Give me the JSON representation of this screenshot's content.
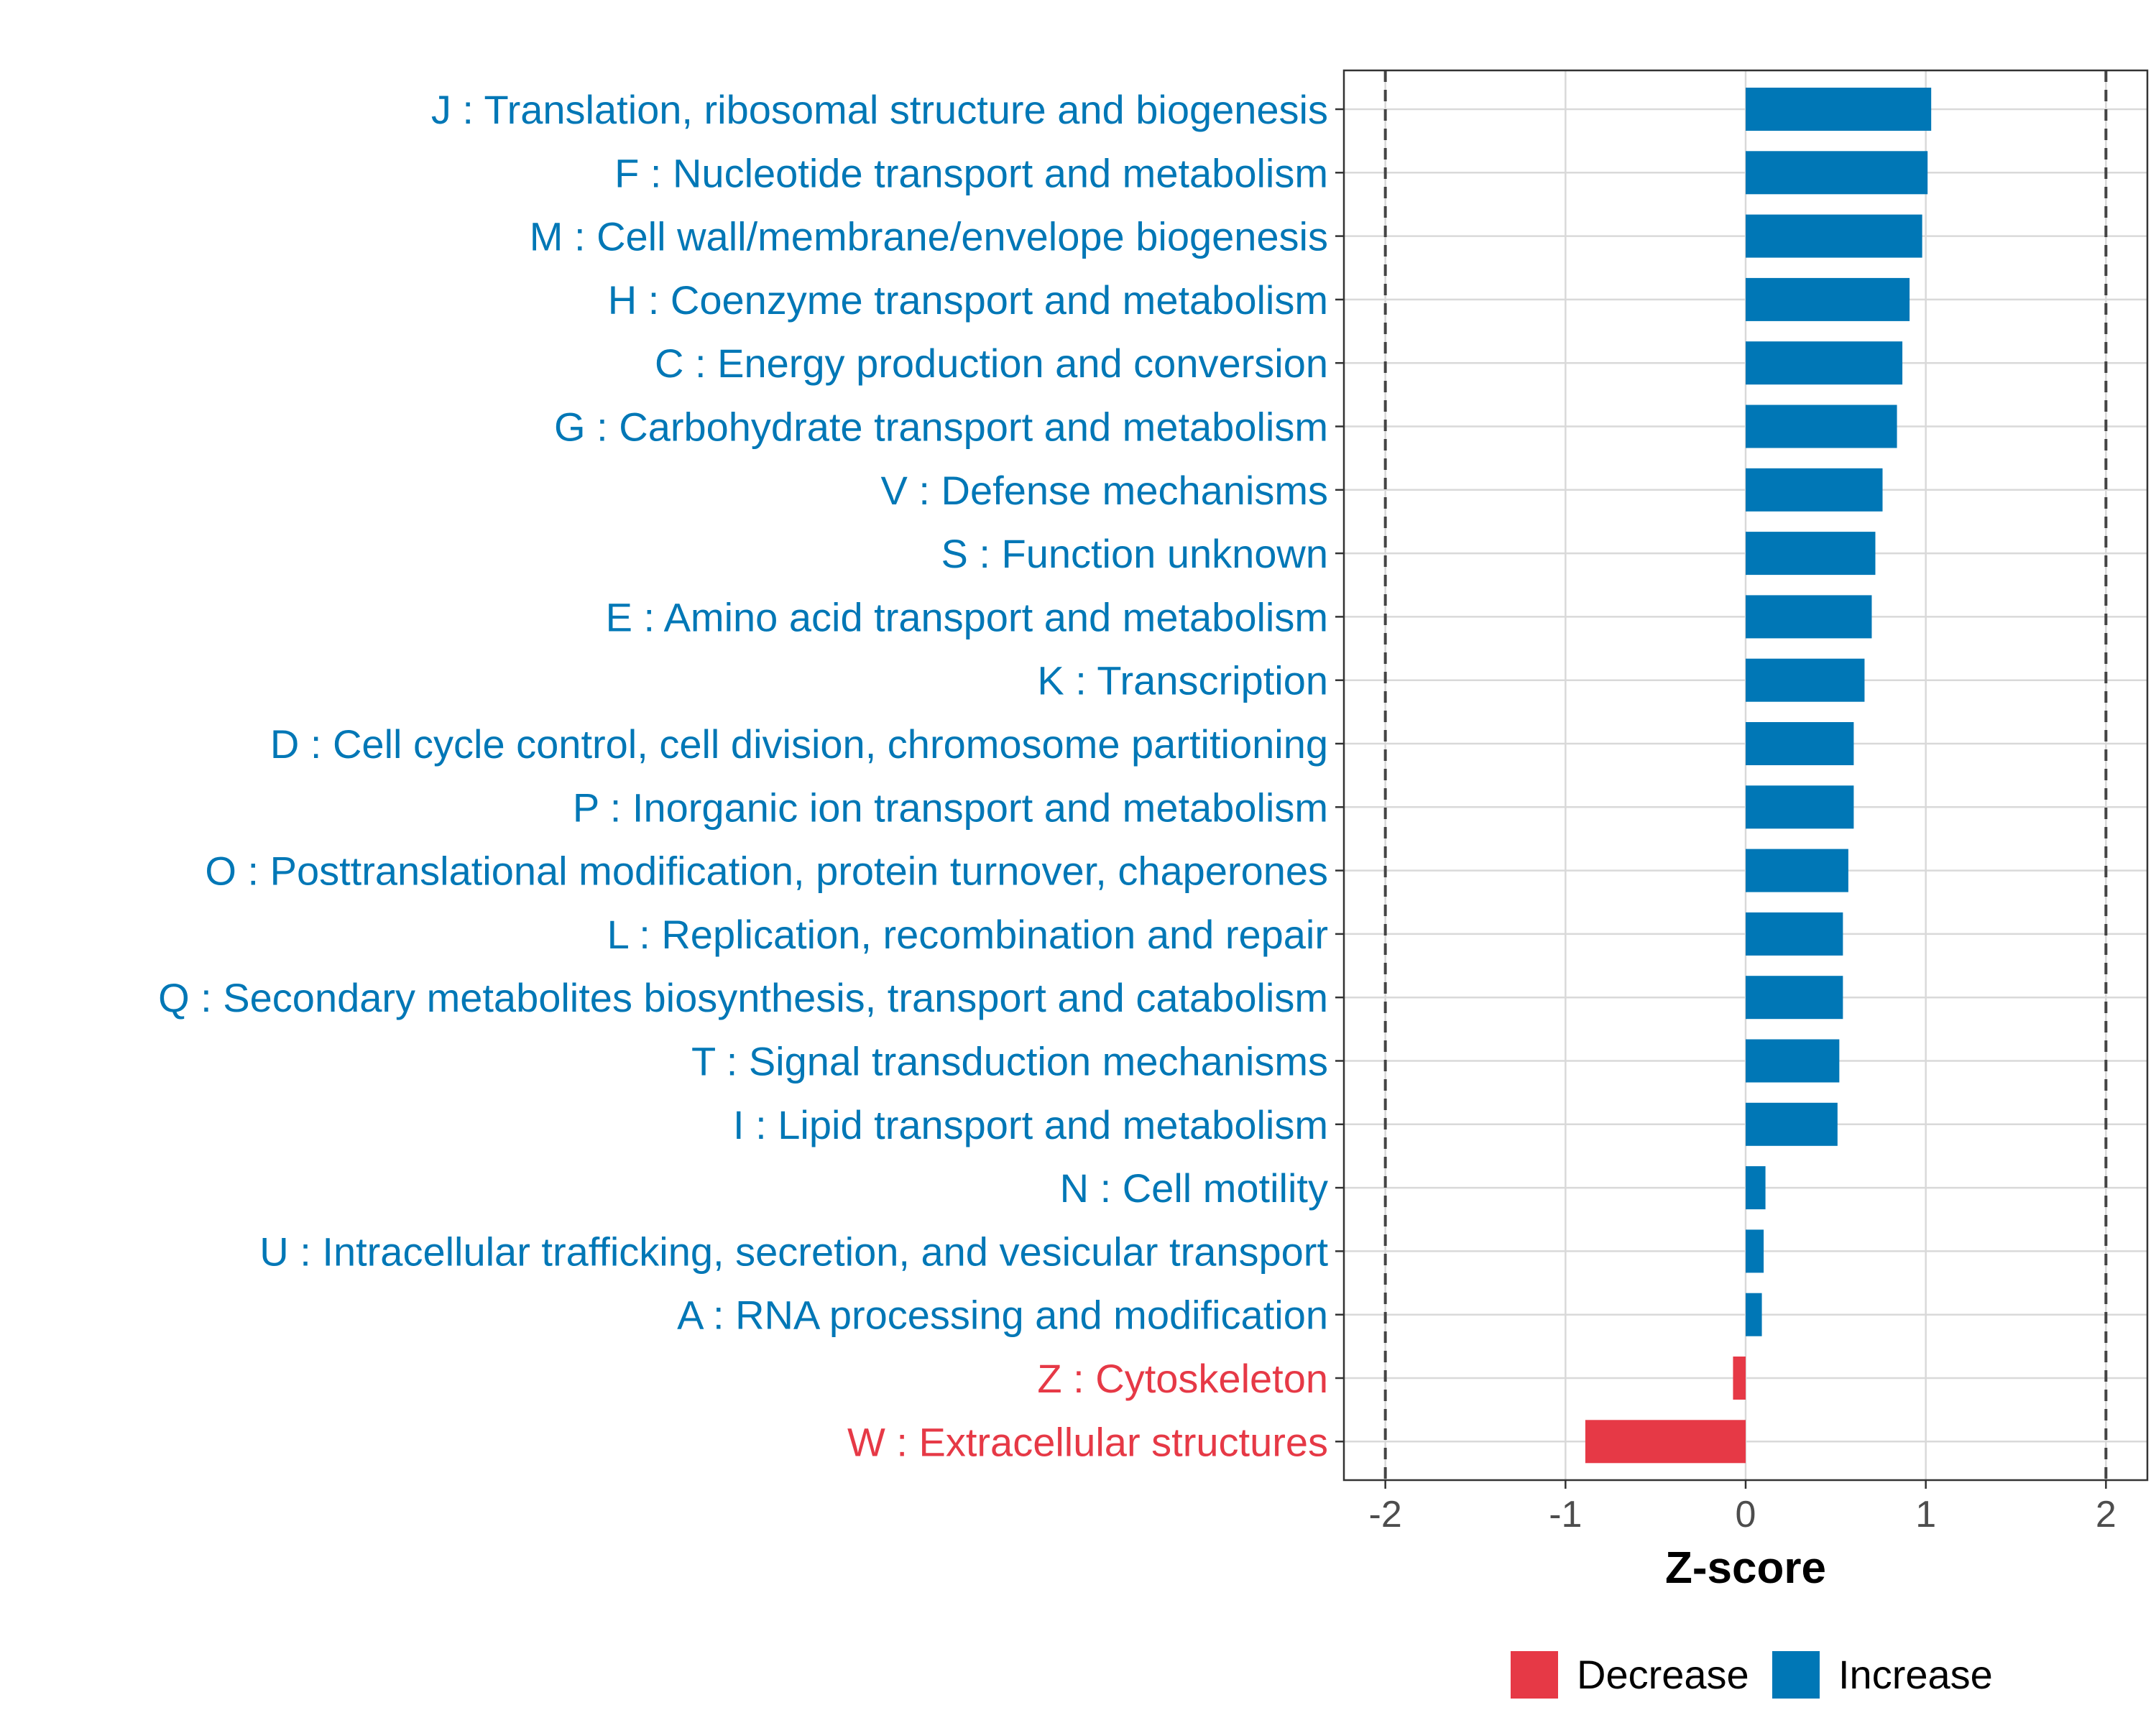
{
  "chart_data": {
    "type": "bar",
    "orientation": "horizontal",
    "xlabel": "Z-score",
    "ylabel": "",
    "xlim": [
      -2.23,
      2.23
    ],
    "xticks": [
      -2,
      -1,
      0,
      1,
      2
    ],
    "xtick_labels": [
      "-2",
      "-1",
      "0",
      "1",
      "2"
    ],
    "reference_lines": [
      -2,
      2
    ],
    "grid": true,
    "legend_position": "bottom",
    "colors": {
      "Increase": "#0077B6",
      "Decrease": "#E63946"
    },
    "legend": [
      {
        "label": "Decrease",
        "color": "#E63946"
      },
      {
        "label": "Increase",
        "color": "#0077B6"
      }
    ],
    "categories": [
      "J : Translation, ribosomal structure and biogenesis",
      "F : Nucleotide transport and metabolism",
      "M : Cell wall/membrane/envelope biogenesis",
      "H : Coenzyme transport and metabolism",
      "C : Energy production and conversion",
      "G : Carbohydrate transport and metabolism",
      "V : Defense mechanisms",
      "S : Function unknown",
      "E : Amino acid transport and metabolism",
      "K : Transcription",
      "D : Cell cycle control, cell division, chromosome partitioning",
      "P : Inorganic ion transport and metabolism",
      "O : Posttranslational modification, protein turnover, chaperones",
      "L : Replication, recombination and repair",
      "Q : Secondary metabolites biosynthesis, transport and catabolism",
      "T : Signal transduction mechanisms",
      "I : Lipid transport and metabolism",
      "N : Cell motility",
      "U : Intracellular trafficking, secretion, and vesicular transport",
      "A : RNA processing and modification",
      "Z : Cytoskeleton",
      "W : Extracellular structures"
    ],
    "values": [
      1.03,
      1.01,
      0.98,
      0.91,
      0.87,
      0.84,
      0.76,
      0.72,
      0.7,
      0.66,
      0.6,
      0.6,
      0.57,
      0.54,
      0.54,
      0.52,
      0.51,
      0.11,
      0.1,
      0.09,
      -0.07,
      -0.89
    ],
    "groups": [
      "Increase",
      "Increase",
      "Increase",
      "Increase",
      "Increase",
      "Increase",
      "Increase",
      "Increase",
      "Increase",
      "Increase",
      "Increase",
      "Increase",
      "Increase",
      "Increase",
      "Increase",
      "Increase",
      "Increase",
      "Increase",
      "Increase",
      "Increase",
      "Decrease",
      "Decrease"
    ]
  }
}
